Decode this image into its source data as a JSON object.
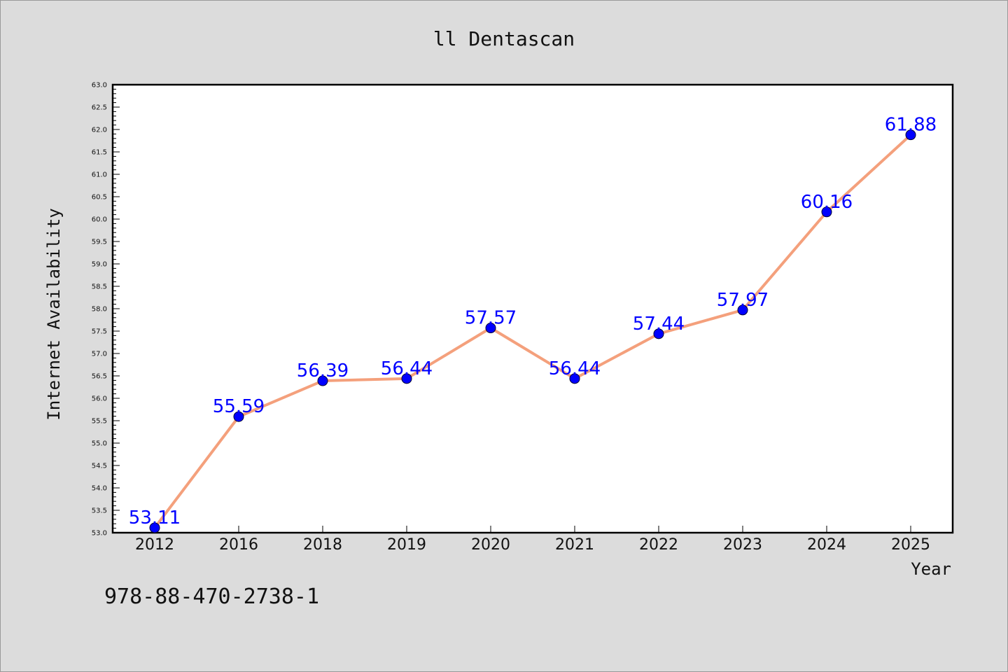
{
  "chart_data": {
    "type": "line",
    "title": "ll Dentascan",
    "xlabel": "Year",
    "ylabel": "Internet Availability",
    "categories": [
      "2012",
      "2016",
      "2018",
      "2019",
      "2020",
      "2021",
      "2022",
      "2023",
      "2024",
      "2025"
    ],
    "series": [
      {
        "values": [
          53.11,
          55.59,
          56.39,
          56.44,
          57.57,
          56.44,
          57.44,
          57.97,
          60.16,
          61.88
        ],
        "labels": [
          "53.11",
          "55.59",
          "56.39",
          "56.44",
          "57.57",
          "56.44",
          "57.44",
          "57.97",
          "60.16",
          "61.88"
        ],
        "line_color": "#f4a07c",
        "marker_color": "#0000ff"
      }
    ],
    "ylim": [
      53.0,
      63.0
    ],
    "ytick_step": 0.5,
    "grid": false,
    "legend": "none"
  },
  "footer": {
    "code": "978-88-470-2738-1"
  }
}
